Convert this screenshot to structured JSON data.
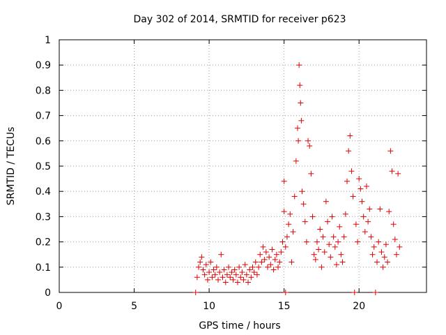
{
  "chart_data": {
    "type": "scatter",
    "title": "Day 302 of 2014, SRMTID for receiver p623",
    "xlabel": "GPS time / hours",
    "ylabel": "SRMTID / TECUs",
    "xlim": [
      0,
      24.5
    ],
    "ylim": [
      0,
      1
    ],
    "x_ticks": [
      0,
      5,
      10,
      15,
      20
    ],
    "x_tick_labels": [
      "0",
      "5",
      "10",
      "15",
      "20"
    ],
    "y_ticks": [
      0,
      0.1,
      0.2,
      0.3,
      0.4,
      0.5,
      0.6,
      0.7,
      0.8,
      0.9,
      1
    ],
    "y_tick_labels": [
      "0",
      "0.1",
      "0.2",
      "0.3",
      "0.4",
      "0.5",
      "0.6",
      "0.7",
      "0.8",
      "0.9",
      "1"
    ],
    "grid": true,
    "marker": "+",
    "series": [
      {
        "name": "SRMTID p623",
        "color": "#e00000",
        "points": [
          [
            9.1,
            0.0
          ],
          [
            9.2,
            0.06
          ],
          [
            9.3,
            0.1
          ],
          [
            9.4,
            0.12
          ],
          [
            9.5,
            0.14
          ],
          [
            9.6,
            0.09
          ],
          [
            9.7,
            0.07
          ],
          [
            9.8,
            0.11
          ],
          [
            9.9,
            0.05
          ],
          [
            10.0,
            0.08
          ],
          [
            10.1,
            0.12
          ],
          [
            10.2,
            0.06
          ],
          [
            10.3,
            0.09
          ],
          [
            10.4,
            0.07
          ],
          [
            10.5,
            0.1
          ],
          [
            10.6,
            0.05
          ],
          [
            10.7,
            0.08
          ],
          [
            10.8,
            0.15
          ],
          [
            10.9,
            0.06
          ],
          [
            11.0,
            0.09
          ],
          [
            11.1,
            0.04
          ],
          [
            11.2,
            0.07
          ],
          [
            11.3,
            0.1
          ],
          [
            11.4,
            0.06
          ],
          [
            11.5,
            0.08
          ],
          [
            11.6,
            0.05
          ],
          [
            11.7,
            0.09
          ],
          [
            11.8,
            0.07
          ],
          [
            11.9,
            0.04
          ],
          [
            12.0,
            0.1
          ],
          [
            12.1,
            0.06
          ],
          [
            12.2,
            0.08
          ],
          [
            12.3,
            0.05
          ],
          [
            12.4,
            0.11
          ],
          [
            12.5,
            0.07
          ],
          [
            12.6,
            0.04
          ],
          [
            12.7,
            0.09
          ],
          [
            12.8,
            0.06
          ],
          [
            12.9,
            0.1
          ],
          [
            13.0,
            0.08
          ],
          [
            13.1,
            0.12
          ],
          [
            13.2,
            0.07
          ],
          [
            13.3,
            0.1
          ],
          [
            13.4,
            0.15
          ],
          [
            13.5,
            0.12
          ],
          [
            13.6,
            0.18
          ],
          [
            13.7,
            0.13
          ],
          [
            13.8,
            0.16
          ],
          [
            13.9,
            0.1
          ],
          [
            14.0,
            0.14
          ],
          [
            14.1,
            0.11
          ],
          [
            14.2,
            0.17
          ],
          [
            14.3,
            0.09
          ],
          [
            14.4,
            0.13
          ],
          [
            14.5,
            0.15
          ],
          [
            14.6,
            0.1
          ],
          [
            14.7,
            0.12
          ],
          [
            14.8,
            0.16
          ],
          [
            14.9,
            0.2
          ],
          [
            15.0,
            0.44
          ],
          [
            15.0,
            0.32
          ],
          [
            15.1,
            0.18
          ],
          [
            15.1,
            0.0
          ],
          [
            15.2,
            0.22
          ],
          [
            15.3,
            0.27
          ],
          [
            15.4,
            0.31
          ],
          [
            15.5,
            0.12
          ],
          [
            15.6,
            0.24
          ],
          [
            15.7,
            0.38
          ],
          [
            15.8,
            0.52
          ],
          [
            15.9,
            0.65
          ],
          [
            15.95,
            0.6
          ],
          [
            16.0,
            0.9
          ],
          [
            16.05,
            0.82
          ],
          [
            16.1,
            0.75
          ],
          [
            16.15,
            0.68
          ],
          [
            16.2,
            0.4
          ],
          [
            16.3,
            0.35
          ],
          [
            16.4,
            0.28
          ],
          [
            16.5,
            0.2
          ],
          [
            16.6,
            0.6
          ],
          [
            16.7,
            0.58
          ],
          [
            16.8,
            0.47
          ],
          [
            16.9,
            0.3
          ],
          [
            17.0,
            0.15
          ],
          [
            17.1,
            0.13
          ],
          [
            17.2,
            0.2
          ],
          [
            17.3,
            0.17
          ],
          [
            17.4,
            0.25
          ],
          [
            17.5,
            0.1
          ],
          [
            17.6,
            0.22
          ],
          [
            17.7,
            0.16
          ],
          [
            17.8,
            0.36
          ],
          [
            17.9,
            0.28
          ],
          [
            18.0,
            0.19
          ],
          [
            18.1,
            0.14
          ],
          [
            18.2,
            0.3
          ],
          [
            18.3,
            0.22
          ],
          [
            18.4,
            0.18
          ],
          [
            18.5,
            0.11
          ],
          [
            18.6,
            0.2
          ],
          [
            18.7,
            0.26
          ],
          [
            18.8,
            0.15
          ],
          [
            18.9,
            0.12
          ],
          [
            19.0,
            0.22
          ],
          [
            19.1,
            0.31
          ],
          [
            19.2,
            0.44
          ],
          [
            19.3,
            0.56
          ],
          [
            19.4,
            0.62
          ],
          [
            19.5,
            0.48
          ],
          [
            19.6,
            0.38
          ],
          [
            19.7,
            0.0
          ],
          [
            19.8,
            0.27
          ],
          [
            19.9,
            0.2
          ],
          [
            20.0,
            0.45
          ],
          [
            20.1,
            0.41
          ],
          [
            20.2,
            0.36
          ],
          [
            20.3,
            0.3
          ],
          [
            20.4,
            0.24
          ],
          [
            20.5,
            0.42
          ],
          [
            20.6,
            0.28
          ],
          [
            20.7,
            0.33
          ],
          [
            20.8,
            0.22
          ],
          [
            20.9,
            0.15
          ],
          [
            21.0,
            0.18
          ],
          [
            21.1,
            0.0
          ],
          [
            21.2,
            0.12
          ],
          [
            21.3,
            0.2
          ],
          [
            21.4,
            0.33
          ],
          [
            21.5,
            0.16
          ],
          [
            21.6,
            0.1
          ],
          [
            21.7,
            0.14
          ],
          [
            21.8,
            0.19
          ],
          [
            21.9,
            0.12
          ],
          [
            22.0,
            0.32
          ],
          [
            22.1,
            0.56
          ],
          [
            22.2,
            0.48
          ],
          [
            22.3,
            0.27
          ],
          [
            22.4,
            0.21
          ],
          [
            22.5,
            0.15
          ],
          [
            22.6,
            0.47
          ],
          [
            22.7,
            0.18
          ]
        ]
      }
    ]
  }
}
